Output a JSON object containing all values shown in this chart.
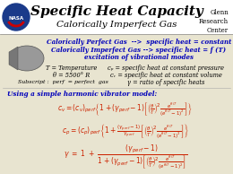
{
  "title": "Specific Heat Capacity",
  "subtitle": "Calorically Imperfect Gas",
  "corner_text": "Glenn\nResearch\nCenter",
  "bg_color": "#e8e4d0",
  "header_bg": "#ffffff",
  "title_color": "#000000",
  "blue_color": "#0000bb",
  "red_color": "#cc2200",
  "harmonic_label": "Using a simple harmonic vibrator model:"
}
